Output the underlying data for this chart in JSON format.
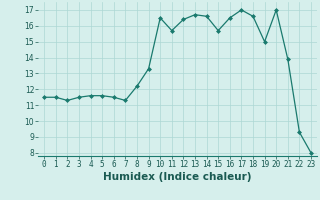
{
  "x": [
    0,
    1,
    2,
    3,
    4,
    5,
    6,
    7,
    8,
    9,
    10,
    11,
    12,
    13,
    14,
    15,
    16,
    17,
    18,
    19,
    20,
    21,
    22,
    23
  ],
  "y": [
    11.5,
    11.5,
    11.3,
    11.5,
    11.6,
    11.6,
    11.5,
    11.3,
    12.2,
    13.3,
    16.5,
    15.7,
    16.4,
    16.7,
    16.6,
    15.7,
    16.5,
    17.0,
    16.6,
    15.0,
    17.0,
    13.9,
    9.3,
    8.0
  ],
  "xlabel": "Humidex (Indice chaleur)",
  "xlim": [
    -0.5,
    23.5
  ],
  "ylim": [
    7.8,
    17.5
  ],
  "yticks": [
    8,
    9,
    10,
    11,
    12,
    13,
    14,
    15,
    16,
    17
  ],
  "xticks": [
    0,
    1,
    2,
    3,
    4,
    5,
    6,
    7,
    8,
    9,
    10,
    11,
    12,
    13,
    14,
    15,
    16,
    17,
    18,
    19,
    20,
    21,
    22,
    23
  ],
  "line_color": "#1a7a6e",
  "marker": "D",
  "marker_size": 2.0,
  "bg_color": "#d6efec",
  "grid_color": "#add8d4",
  "tick_fontsize": 5.5,
  "xlabel_fontsize": 7.5
}
